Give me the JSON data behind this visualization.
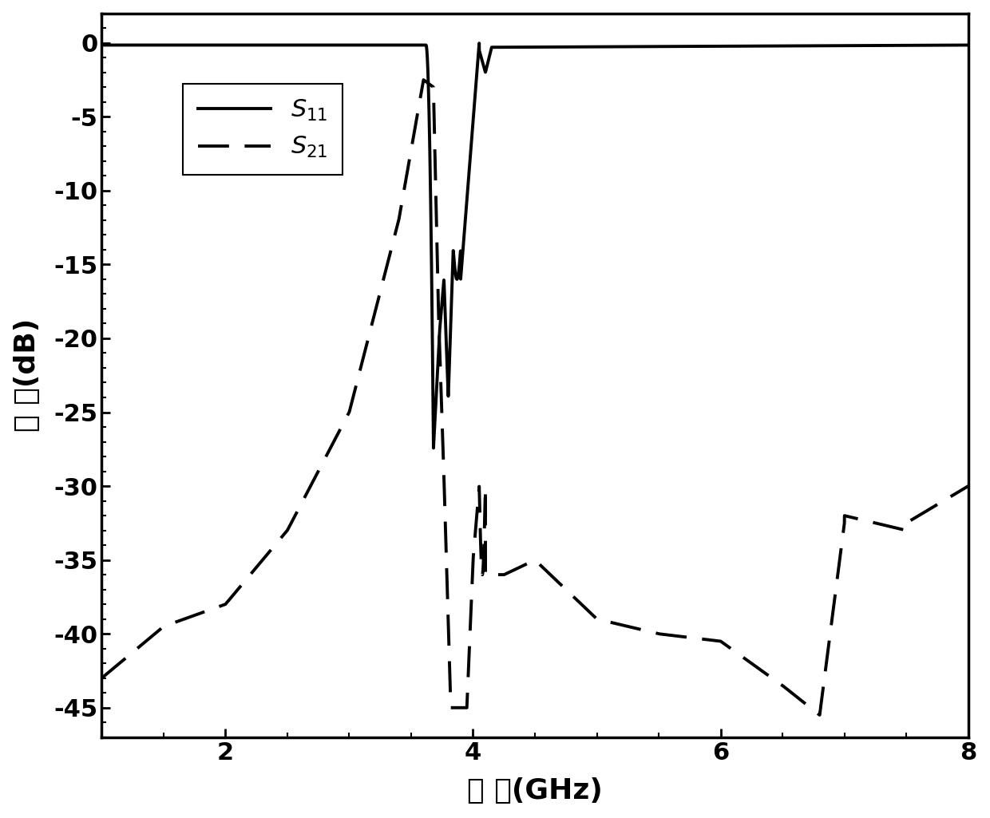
{
  "xlabel": "频 率(GHz)",
  "ylabel": "幅 度(dB)",
  "xlim": [
    1,
    8
  ],
  "ylim": [
    -47,
    2
  ],
  "xticks": [
    2,
    4,
    6,
    8
  ],
  "ytick_vals": [
    0,
    -5,
    -10,
    -15,
    -20,
    -25,
    -30,
    -35,
    -40,
    -45
  ],
  "ytick_labels": [
    "0",
    "-5",
    "-10",
    "-15",
    "-20",
    "-25",
    "-30",
    "-35",
    "-40",
    "-45"
  ],
  "color": "#000000",
  "background_color": "#ffffff",
  "legend_labels": [
    "$S_{11}$",
    "$S_{21}$"
  ],
  "linewidth": 2.8
}
